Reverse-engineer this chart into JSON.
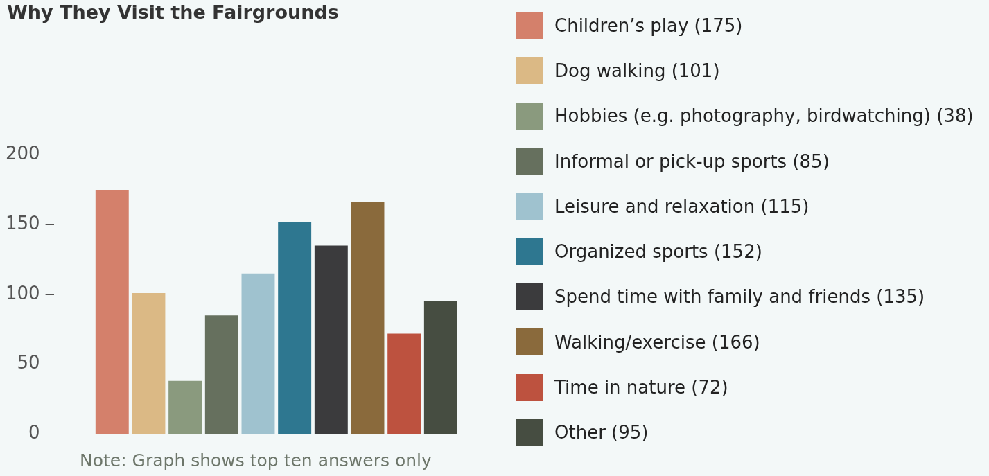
{
  "chart_data": {
    "type": "bar",
    "title": "Why They Visit the Fairgrounds",
    "categories": [
      null
    ],
    "series": [
      {
        "name": "Children’s play (175)",
        "color": "#d4806b",
        "values": [
          175
        ]
      },
      {
        "name": "Dog walking (101)",
        "color": "#dbb985",
        "values": [
          101
        ]
      },
      {
        "name": "Hobbies (e.g. photography, birdwatching) (38)",
        "color": "#8a9a7e",
        "values": [
          38
        ]
      },
      {
        "name": "Informal or pick-up sports (85)",
        "color": "#66705e",
        "values": [
          85
        ]
      },
      {
        "name": "Leisure and relaxation (115)",
        "color": "#9fc2cf",
        "values": [
          115
        ]
      },
      {
        "name": "Organized sports (152)",
        "color": "#2e7790",
        "values": [
          152
        ]
      },
      {
        "name": "Spend time with family and friends (135)",
        "color": "#3b3b3d",
        "values": [
          135
        ]
      },
      {
        "name": "Walking/exercise (166)",
        "color": "#8a6a3c",
        "values": [
          166
        ]
      },
      {
        "name": "Time in nature (72)",
        "color": "#bd523f",
        "values": [
          72
        ]
      },
      {
        "name": "Other (95)",
        "color": "#464d41",
        "values": [
          95
        ]
      }
    ],
    "ylim": [
      0,
      200
    ],
    "yticks": [
      0,
      50,
      100,
      150,
      200
    ],
    "legend": "right",
    "tick_labels": "y",
    "annotations": [
      "Note: Graph shows top ten answers only"
    ]
  }
}
